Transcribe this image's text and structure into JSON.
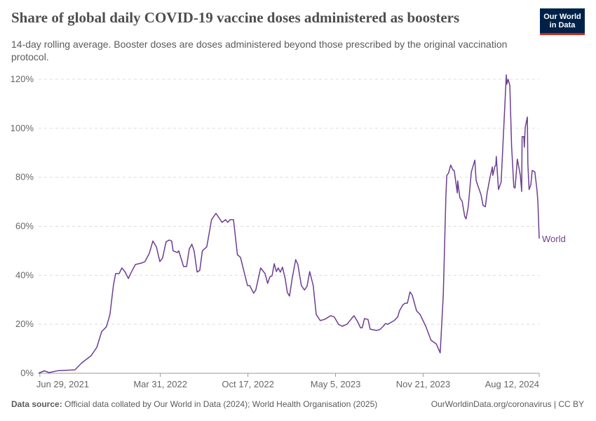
{
  "header": {
    "title": "Share of global daily COVID-19 vaccine doses administered as boosters",
    "subtitle": "14-day rolling average. Booster doses are doses administered beyond those prescribed by the original vaccination protocol.",
    "logo_text": "Our World in Data"
  },
  "footer": {
    "source_label": "Data source:",
    "source_text": "Official data collated by Our World in Data (2024); World Health Organisation (2025)",
    "right_text": "OurWorldinData.org/coronavirus | CC BY"
  },
  "chart_data": {
    "type": "line",
    "title": "Share of global daily COVID-19 vaccine doses administered as boosters",
    "xlabel": "",
    "ylabel": "",
    "xlim": [
      "2021-06-26",
      "2024-08-12"
    ],
    "ylim": [
      0,
      120
    ],
    "y_ticks": [
      0,
      20,
      40,
      60,
      80,
      100,
      120
    ],
    "y_tick_labels": [
      "0%",
      "20%",
      "40%",
      "60%",
      "80%",
      "100%",
      "120%"
    ],
    "x_ticks": [
      "2021-06-29",
      "2022-03-31",
      "2022-10-17",
      "2023-05-05",
      "2023-11-21",
      "2024-08-12"
    ],
    "x_tick_labels": [
      "Jun 29, 2021",
      "Mar 31, 2022",
      "Oct 17, 2022",
      "May 5, 2023",
      "Nov 21, 2023",
      "Aug 12, 2024"
    ],
    "grid": "horizontal dashed",
    "legend": "inline label at line end",
    "color": "#6d3e91",
    "series": [
      {
        "name": "World",
        "points": [
          [
            "2021-06-26",
            0
          ],
          [
            "2021-07-09",
            1.0
          ],
          [
            "2021-07-20",
            0.3
          ],
          [
            "2021-08-10",
            1.1
          ],
          [
            "2021-09-17",
            1.4
          ],
          [
            "2021-10-03",
            4.3
          ],
          [
            "2021-10-24",
            7.2
          ],
          [
            "2021-11-06",
            10.6
          ],
          [
            "2021-11-17",
            17
          ],
          [
            "2021-11-28",
            19
          ],
          [
            "2021-12-06",
            24
          ],
          [
            "2021-12-14",
            36
          ],
          [
            "2021-12-19",
            40.7
          ],
          [
            "2021-12-27",
            40.7
          ],
          [
            "2022-01-02",
            43
          ],
          [
            "2022-01-09",
            41.5
          ],
          [
            "2022-01-17",
            38.7
          ],
          [
            "2022-01-23",
            41
          ],
          [
            "2022-02-02",
            44.4
          ],
          [
            "2022-02-16",
            45
          ],
          [
            "2022-02-24",
            45.6
          ],
          [
            "2022-03-06",
            49
          ],
          [
            "2022-03-14",
            54
          ],
          [
            "2022-03-22",
            51.6
          ],
          [
            "2022-03-30",
            45.6
          ],
          [
            "2022-04-05",
            47
          ],
          [
            "2022-04-13",
            53.6
          ],
          [
            "2022-04-20",
            54.4
          ],
          [
            "2022-04-26",
            54
          ],
          [
            "2022-04-29",
            50
          ],
          [
            "2022-05-09",
            49.3
          ],
          [
            "2022-05-12",
            50
          ],
          [
            "2022-05-23",
            43.6
          ],
          [
            "2022-05-30",
            43.6
          ],
          [
            "2022-06-05",
            50.7
          ],
          [
            "2022-06-11",
            52.7
          ],
          [
            "2022-06-16",
            50
          ],
          [
            "2022-06-23",
            41.3
          ],
          [
            "2022-06-29",
            42
          ],
          [
            "2022-07-05",
            50
          ],
          [
            "2022-07-15",
            51.6
          ],
          [
            "2022-07-26",
            62.7
          ],
          [
            "2022-08-05",
            65.3
          ],
          [
            "2022-08-19",
            61.6
          ],
          [
            "2022-08-27",
            62.7
          ],
          [
            "2022-09-01",
            61.6
          ],
          [
            "2022-09-06",
            62.7
          ],
          [
            "2022-09-14",
            62.7
          ],
          [
            "2022-09-23",
            48.4
          ],
          [
            "2022-09-30",
            47.3
          ],
          [
            "2022-10-08",
            41.5
          ],
          [
            "2022-10-16",
            35.8
          ],
          [
            "2022-10-21",
            35.8
          ],
          [
            "2022-10-30",
            32.7
          ],
          [
            "2022-11-04",
            34
          ],
          [
            "2022-11-15",
            43
          ],
          [
            "2022-11-25",
            40.7
          ],
          [
            "2022-12-01",
            36.7
          ],
          [
            "2022-12-06",
            39.3
          ],
          [
            "2022-12-11",
            39.8
          ],
          [
            "2022-12-16",
            44.7
          ],
          [
            "2022-12-21",
            41.5
          ],
          [
            "2022-12-25",
            43
          ],
          [
            "2022-12-30",
            41.3
          ],
          [
            "2023-01-04",
            43.3
          ],
          [
            "2023-01-10",
            38.7
          ],
          [
            "2023-01-15",
            33
          ],
          [
            "2023-01-20",
            31.5
          ],
          [
            "2023-01-26",
            38.7
          ],
          [
            "2023-02-03",
            46.4
          ],
          [
            "2023-02-08",
            44.4
          ],
          [
            "2023-02-16",
            35.8
          ],
          [
            "2023-02-23",
            34
          ],
          [
            "2023-03-01",
            35.5
          ],
          [
            "2023-03-07",
            41.5
          ],
          [
            "2023-03-15",
            35.8
          ],
          [
            "2023-03-22",
            24
          ],
          [
            "2023-03-31",
            21.5
          ],
          [
            "2023-04-10",
            22
          ],
          [
            "2023-04-24",
            23.5
          ],
          [
            "2023-05-02",
            23
          ],
          [
            "2023-05-12",
            20
          ],
          [
            "2023-05-20",
            19.2
          ],
          [
            "2023-05-31",
            20
          ],
          [
            "2023-06-16",
            23.5
          ],
          [
            "2023-06-24",
            21.2
          ],
          [
            "2023-07-01",
            18.6
          ],
          [
            "2023-07-05",
            18.6
          ],
          [
            "2023-07-10",
            22.3
          ],
          [
            "2023-07-18",
            22
          ],
          [
            "2023-07-23",
            18
          ],
          [
            "2023-08-06",
            17.5
          ],
          [
            "2023-08-14",
            17.8
          ],
          [
            "2023-08-22",
            19.2
          ],
          [
            "2023-08-27",
            20.3
          ],
          [
            "2023-09-01",
            20
          ],
          [
            "2023-09-16",
            21.5
          ],
          [
            "2023-09-24",
            23
          ],
          [
            "2023-09-28",
            25.5
          ],
          [
            "2023-10-06",
            28
          ],
          [
            "2023-10-11",
            28.6
          ],
          [
            "2023-10-16",
            28.6
          ],
          [
            "2023-10-22",
            33.2
          ],
          [
            "2023-10-27",
            32
          ],
          [
            "2023-11-06",
            25.5
          ],
          [
            "2023-11-14",
            24
          ],
          [
            "2023-11-27",
            19.2
          ],
          [
            "2023-12-09",
            13.5
          ],
          [
            "2023-12-21",
            12
          ],
          [
            "2023-12-27",
            9.5
          ],
          [
            "2023-12-30",
            8.3
          ],
          [
            "2024-01-06",
            32
          ],
          [
            "2024-01-12",
            72
          ],
          [
            "2024-01-14",
            80.8
          ],
          [
            "2024-01-18",
            81.7
          ],
          [
            "2024-01-23",
            85
          ],
          [
            "2024-01-28",
            83
          ],
          [
            "2024-01-31",
            82.8
          ],
          [
            "2024-02-07",
            73.6
          ],
          [
            "2024-02-08",
            78.5
          ],
          [
            "2024-02-13",
            71.6
          ],
          [
            "2024-02-18",
            70.2
          ],
          [
            "2024-02-24",
            64
          ],
          [
            "2024-02-27",
            63
          ],
          [
            "2024-03-03",
            68
          ],
          [
            "2024-03-10",
            82.2
          ],
          [
            "2024-03-18",
            87
          ],
          [
            "2024-03-21",
            78.8
          ],
          [
            "2024-03-26",
            76
          ],
          [
            "2024-04-01",
            73
          ],
          [
            "2024-04-06",
            68.5
          ],
          [
            "2024-04-11",
            68
          ],
          [
            "2024-04-15",
            73.6
          ],
          [
            "2024-04-22",
            80.2
          ],
          [
            "2024-04-27",
            84.2
          ],
          [
            "2024-04-28",
            80.8
          ],
          [
            "2024-05-03",
            84.5
          ],
          [
            "2024-05-05",
            85
          ],
          [
            "2024-05-06",
            88.5
          ],
          [
            "2024-05-11",
            75
          ],
          [
            "2024-05-17",
            78
          ],
          [
            "2024-05-29",
            121.8
          ],
          [
            "2024-05-30",
            118
          ],
          [
            "2024-06-02",
            120
          ],
          [
            "2024-06-06",
            117.5
          ],
          [
            "2024-06-10",
            92.8
          ],
          [
            "2024-06-15",
            76
          ],
          [
            "2024-06-18",
            75.6
          ],
          [
            "2024-06-23",
            87.4
          ],
          [
            "2024-06-30",
            80.8
          ],
          [
            "2024-07-03",
            74.2
          ],
          [
            "2024-07-04",
            96.6
          ],
          [
            "2024-07-08",
            96.6
          ],
          [
            "2024-07-09",
            92.3
          ],
          [
            "2024-07-11",
            100.3
          ],
          [
            "2024-07-16",
            104.6
          ],
          [
            "2024-07-17",
            85.7
          ],
          [
            "2024-07-20",
            75
          ],
          [
            "2024-07-24",
            77
          ],
          [
            "2024-07-27",
            82.8
          ],
          [
            "2024-08-02",
            82.2
          ],
          [
            "2024-08-07",
            74.5
          ],
          [
            "2024-08-09",
            70.2
          ],
          [
            "2024-08-12",
            55
          ]
        ]
      }
    ]
  }
}
